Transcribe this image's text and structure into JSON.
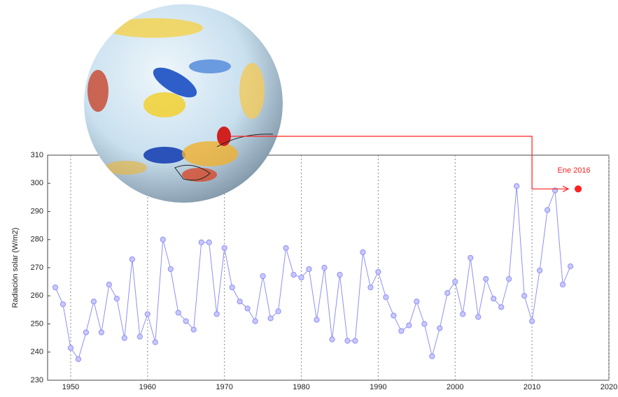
{
  "chart_data": {
    "type": "line",
    "ylabel": "Radiación solar (W/m2)",
    "x": [
      1948,
      1949,
      1950,
      1951,
      1952,
      1953,
      1954,
      1955,
      1956,
      1957,
      1958,
      1959,
      1960,
      1961,
      1962,
      1963,
      1964,
      1965,
      1966,
      1967,
      1968,
      1969,
      1970,
      1971,
      1972,
      1973,
      1974,
      1975,
      1976,
      1977,
      1978,
      1979,
      1980,
      1981,
      1982,
      1983,
      1984,
      1985,
      1986,
      1987,
      1988,
      1989,
      1990,
      1991,
      1992,
      1993,
      1994,
      1995,
      1996,
      1997,
      1998,
      1999,
      2000,
      2001,
      2002,
      2003,
      2004,
      2005,
      2006,
      2007,
      2008,
      2009,
      2010,
      2011,
      2012,
      2013,
      2014,
      2015
    ],
    "series": [
      {
        "color": "#8f8ff5",
        "values": [
          263,
          257,
          241.5,
          237.5,
          247,
          258,
          247,
          264,
          259,
          245,
          273,
          245.5,
          253.5,
          243.5,
          280,
          269.5,
          254,
          251,
          248,
          279,
          279,
          253.5,
          277,
          263,
          258,
          255.5,
          251,
          267,
          252,
          254.5,
          277,
          267.5,
          266.5,
          269.5,
          251.5,
          270,
          244.5,
          267.5,
          244,
          244,
          275.5,
          263,
          268.5,
          259.5,
          253,
          247.5,
          249.5,
          258,
          250,
          238.5,
          248.5,
          261,
          265,
          253.5,
          273.5,
          252.5,
          266,
          259,
          256,
          266,
          299,
          260,
          251,
          269,
          290.5,
          297.5,
          264,
          270.5
        ]
      }
    ],
    "xlim": [
      1947,
      2020
    ],
    "xticks": [
      1950,
      1960,
      1970,
      1980,
      1990,
      2000,
      2010,
      2020
    ],
    "ylim": [
      230,
      310
    ],
    "yticks": [
      230,
      240,
      250,
      260,
      270,
      280,
      290,
      300,
      310
    ],
    "grid": true,
    "annotation": {
      "label": "Ene 2016",
      "x": 2016,
      "y": 298,
      "color": "#ff2020"
    }
  }
}
